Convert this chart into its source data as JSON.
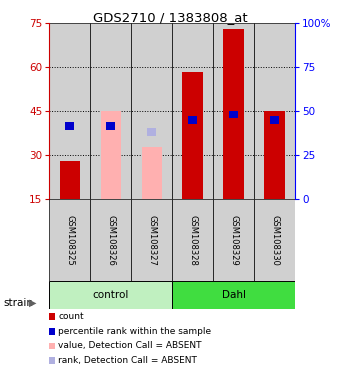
{
  "title": "GDS2710 / 1383808_at",
  "samples": [
    "GSM108325",
    "GSM108326",
    "GSM108327",
    "GSM108328",
    "GSM108329",
    "GSM108330"
  ],
  "group_colors": {
    "control": "#c0f0c0",
    "Dahl": "#40dd40"
  },
  "ylim_left": [
    15,
    75
  ],
  "ylim_right": [
    0,
    100
  ],
  "yticks_left": [
    15,
    30,
    45,
    60,
    75
  ],
  "yticks_right": [
    0,
    25,
    50,
    75,
    100
  ],
  "baseline": 15,
  "bar_width": 0.5,
  "red_bars": [
    28.0,
    null,
    null,
    58.5,
    73.0,
    45.0
  ],
  "pink_bars": [
    null,
    45.0,
    33.0,
    null,
    null,
    null
  ],
  "blue_squares": [
    40.0,
    40.0,
    null,
    42.0,
    44.0,
    42.0
  ],
  "purple_squares": [
    null,
    null,
    38.0,
    null,
    null,
    null
  ],
  "red_color": "#cc0000",
  "pink_color": "#ffb0b0",
  "blue_color": "#0000cc",
  "purple_color": "#b0b0e0",
  "bg_color": "#d0d0d0",
  "dotted_lines": [
    30,
    45,
    60
  ],
  "legend_items": [
    {
      "color": "#cc0000",
      "label": "count"
    },
    {
      "color": "#0000cc",
      "label": "percentile rank within the sample"
    },
    {
      "color": "#ffb0b0",
      "label": "value, Detection Call = ABSENT"
    },
    {
      "color": "#b0b0e0",
      "label": "rank, Detection Call = ABSENT"
    }
  ],
  "control_range": [
    0,
    2
  ],
  "dahl_range": [
    3,
    5
  ]
}
